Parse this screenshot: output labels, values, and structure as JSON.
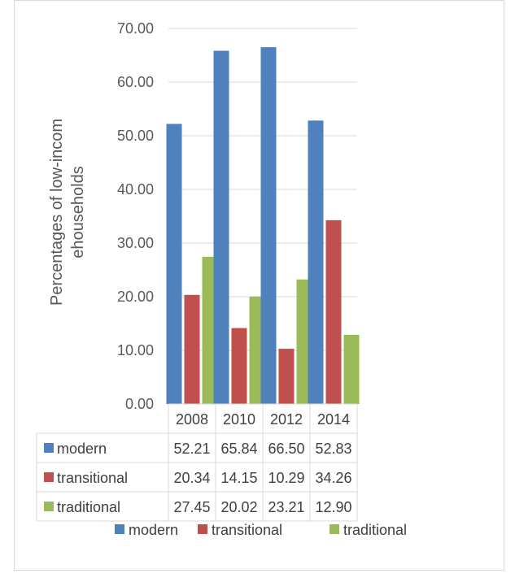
{
  "chart_data": {
    "type": "bar",
    "ylabel_lines": [
      "Percentages of low-incom",
      "ehouseholds"
    ],
    "ylim": [
      0,
      70
    ],
    "yticks": [
      "0.00",
      "10.00",
      "20.00",
      "30.00",
      "40.00",
      "50.00",
      "60.00",
      "70.00"
    ],
    "grid": true,
    "legend_position": "bottom",
    "categories": [
      "2008",
      "2010",
      "2012",
      "2014"
    ],
    "series": [
      {
        "name": "modern",
        "color": "#4F81BD",
        "values": [
          52.21,
          65.84,
          66.5,
          52.83
        ],
        "labels": [
          "52.21",
          "65.84",
          "66.50",
          "52.83"
        ]
      },
      {
        "name": "transitional",
        "color": "#C0504D",
        "values": [
          20.34,
          14.15,
          10.29,
          34.26
        ],
        "labels": [
          "20.34",
          "14.15",
          "10.29",
          "34.26"
        ]
      },
      {
        "name": "traditional",
        "color": "#9BBB59",
        "values": [
          27.45,
          20.02,
          23.21,
          12.9
        ],
        "labels": [
          "27.45",
          "20.02",
          "23.21",
          "12.90"
        ]
      }
    ]
  }
}
